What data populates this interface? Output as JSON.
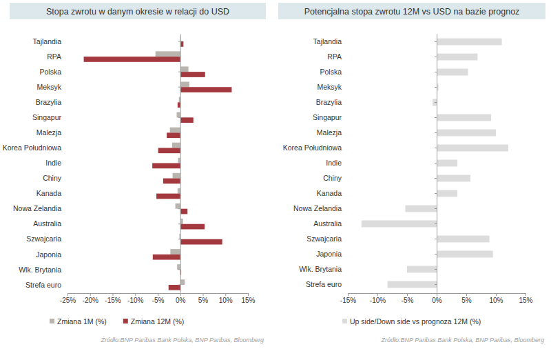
{
  "chart_data": [
    {
      "type": "bar",
      "orientation": "horizontal",
      "title": "Stopa zwrotu w danym okresie w relacji do USD",
      "categories": [
        "Tajlandia",
        "RPA",
        "Polska",
        "Meksyk",
        "Brazylia",
        "Singapur",
        "Malezja",
        "Korea Południowa",
        "Indie",
        "Chiny",
        "Kanada",
        "Nowa Zelandia",
        "Australia",
        "Szwajcaria",
        "Japonia",
        "Wlk. Brytania",
        "Strefa euro"
      ],
      "series": [
        {
          "name": "Zmiana 1M (%)",
          "color": "#b9b4ae",
          "values": [
            0.1,
            -5.5,
            1.8,
            2.0,
            -0.3,
            -0.8,
            -2.3,
            -1.8,
            -0.5,
            -1.7,
            -0.6,
            -1.1,
            0.6,
            -0.2,
            -2.2,
            -0.7,
            1.0
          ]
        },
        {
          "name": "Zmiana 12M (%)",
          "color": "#a3393e",
          "values": [
            0.7,
            -21.4,
            5.5,
            11.4,
            -0.6,
            2.9,
            -3.0,
            -4.9,
            -6.2,
            -3.8,
            -5.3,
            1.6,
            5.4,
            9.3,
            -6.1,
            0.2,
            -2.6
          ]
        }
      ],
      "xlim": [
        -25,
        15
      ],
      "xticks": [
        {
          "value": -25,
          "label": "-25%"
        },
        {
          "value": -20,
          "label": "-20%"
        },
        {
          "value": -15,
          "label": "-15%"
        },
        {
          "value": -10,
          "label": "-10%"
        },
        {
          "value": -5,
          "label": "-5%"
        },
        {
          "value": 0,
          "label": "0%"
        },
        {
          "value": 5,
          "label": "5%"
        },
        {
          "value": 10,
          "label": "10%"
        },
        {
          "value": 15,
          "label": "15%"
        }
      ],
      "legend": "bottom-left",
      "source": "Źródło:BNP Paribas Bank Polska, BNP Paribas, Bloomberg"
    },
    {
      "type": "bar",
      "orientation": "horizontal",
      "title": "Potencjalna stopa zwrotu 12M vs USD na bazie prognoz",
      "categories": [
        "Tajlandia",
        "RPA",
        "Polska",
        "Meksyk",
        "Brazylia",
        "Singapur",
        "Malezja",
        "Korea Południowa",
        "Indie",
        "Chiny",
        "Kanada",
        "Nowa Zelandia",
        "Australia",
        "Szwajcaria",
        "Japonia",
        "Wlk. Brytania",
        "Strefa euro"
      ],
      "series": [
        {
          "name": "Up side/Down side vs prognoza 12M (%)",
          "color": "#dcdcdc",
          "values": [
            11.0,
            6.9,
            5.3,
            0.3,
            -0.7,
            9.2,
            10.0,
            12.1,
            3.5,
            5.7,
            3.5,
            -5.3,
            -12.7,
            8.9,
            9.5,
            -5.0,
            -8.3
          ]
        }
      ],
      "xlim": [
        -15,
        15
      ],
      "xticks": [
        {
          "value": -15,
          "label": "-15%"
        },
        {
          "value": -10,
          "label": "-10%"
        },
        {
          "value": -5,
          "label": "-5%"
        },
        {
          "value": 0,
          "label": "0%"
        },
        {
          "value": 5,
          "label": "5%"
        },
        {
          "value": 10,
          "label": "10%"
        },
        {
          "value": 15,
          "label": "15%"
        }
      ],
      "legend": "bottom-left",
      "source": "Źródło:BNP Paribas Bank Polska, BNP Paribas, Bloomberg"
    }
  ]
}
